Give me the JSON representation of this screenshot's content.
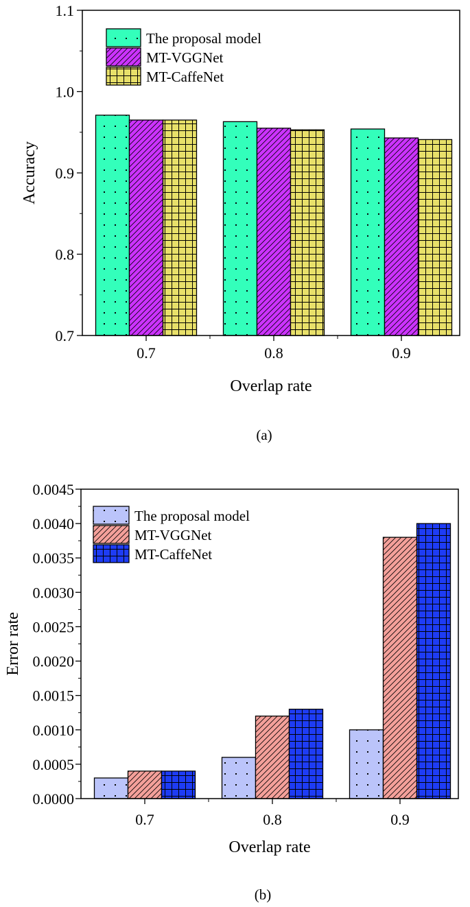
{
  "chart_data": [
    {
      "type": "bar",
      "panel_label": "(a)",
      "xlabel": "Overlap rate",
      "ylabel": "Accuracy",
      "categories": [
        "0.7",
        "0.8",
        "0.9"
      ],
      "ylim": [
        0.7,
        1.1
      ],
      "yticks": [
        "0.7",
        "0.8",
        "0.9",
        "1.0",
        "1.1"
      ],
      "legend_position": "top-left",
      "series": [
        {
          "name": "The proposal model",
          "values": [
            0.971,
            0.963,
            0.954
          ],
          "color": "#33FFBB",
          "pattern": "dots"
        },
        {
          "name": "MT-VGGNet",
          "values": [
            0.965,
            0.955,
            0.943
          ],
          "color": "#CC33FF",
          "pattern": "hatch"
        },
        {
          "name": "MT-CaffeNet",
          "values": [
            0.965,
            0.953,
            0.941
          ],
          "color": "#E8E06A",
          "pattern": "grid"
        }
      ]
    },
    {
      "type": "bar",
      "panel_label": "(b)",
      "xlabel": "Overlap rate",
      "ylabel": "Error rate",
      "categories": [
        "0.7",
        "0.8",
        "0.9"
      ],
      "ylim": [
        0,
        0.0045
      ],
      "yticks": [
        "0.0000",
        "0.0005",
        "0.0010",
        "0.0015",
        "0.0020",
        "0.0025",
        "0.0030",
        "0.0035",
        "0.0040",
        "0.0045"
      ],
      "legend_position": "top-left",
      "series": [
        {
          "name": "The proposal model",
          "values": [
            0.0003,
            0.0006,
            0.001
          ],
          "color": "#BBC4FA",
          "pattern": "dots"
        },
        {
          "name": "MT-VGGNet",
          "values": [
            0.0004,
            0.0012,
            0.0038
          ],
          "color": "#F4A09A",
          "pattern": "hatch"
        },
        {
          "name": "MT-CaffeNet",
          "values": [
            0.0004,
            0.0013,
            0.004
          ],
          "color": "#1E3CF5",
          "pattern": "grid"
        }
      ]
    }
  ]
}
